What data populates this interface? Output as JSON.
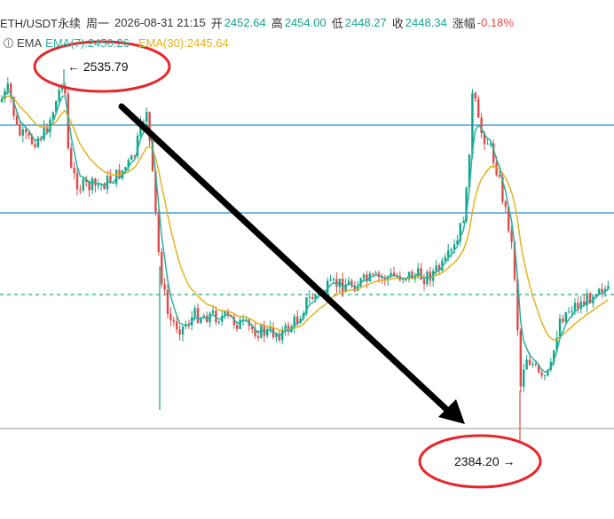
{
  "header": {
    "symbol": "ETH/USDT永续",
    "weekday": "周一",
    "datetime": "2026-08-31 21:15",
    "open_label": "开",
    "open_value": "2452.64",
    "high_label": "高",
    "high_value": "2454.00",
    "low_label": "低",
    "low_value": "2448.27",
    "close_label": "收",
    "close_value": "2448.34",
    "change_label": "涨幅",
    "change_value": "-0.18%"
  },
  "indicator": {
    "name": "EMA",
    "ema7_label": "EMA(7):2450.26",
    "ema30_label": "EMA(30):2445.64"
  },
  "annotations": {
    "high_marker": "← 2535.79",
    "low_marker": "2384.20 →"
  },
  "colors": {
    "up": "#12a58a",
    "down": "#e24a4a",
    "ema7": "#22b3a1",
    "ema30": "#e3b21e",
    "hline": "#2a8fc9",
    "circle": "#e8262a",
    "dashed": "#17a883"
  },
  "chart_data": {
    "type": "candlestick",
    "series_ema": [
      "EMA(7)",
      "EMA(30)"
    ],
    "marked_high": 2535.79,
    "marked_low": 2384.2,
    "last_close": 2448.34
  }
}
